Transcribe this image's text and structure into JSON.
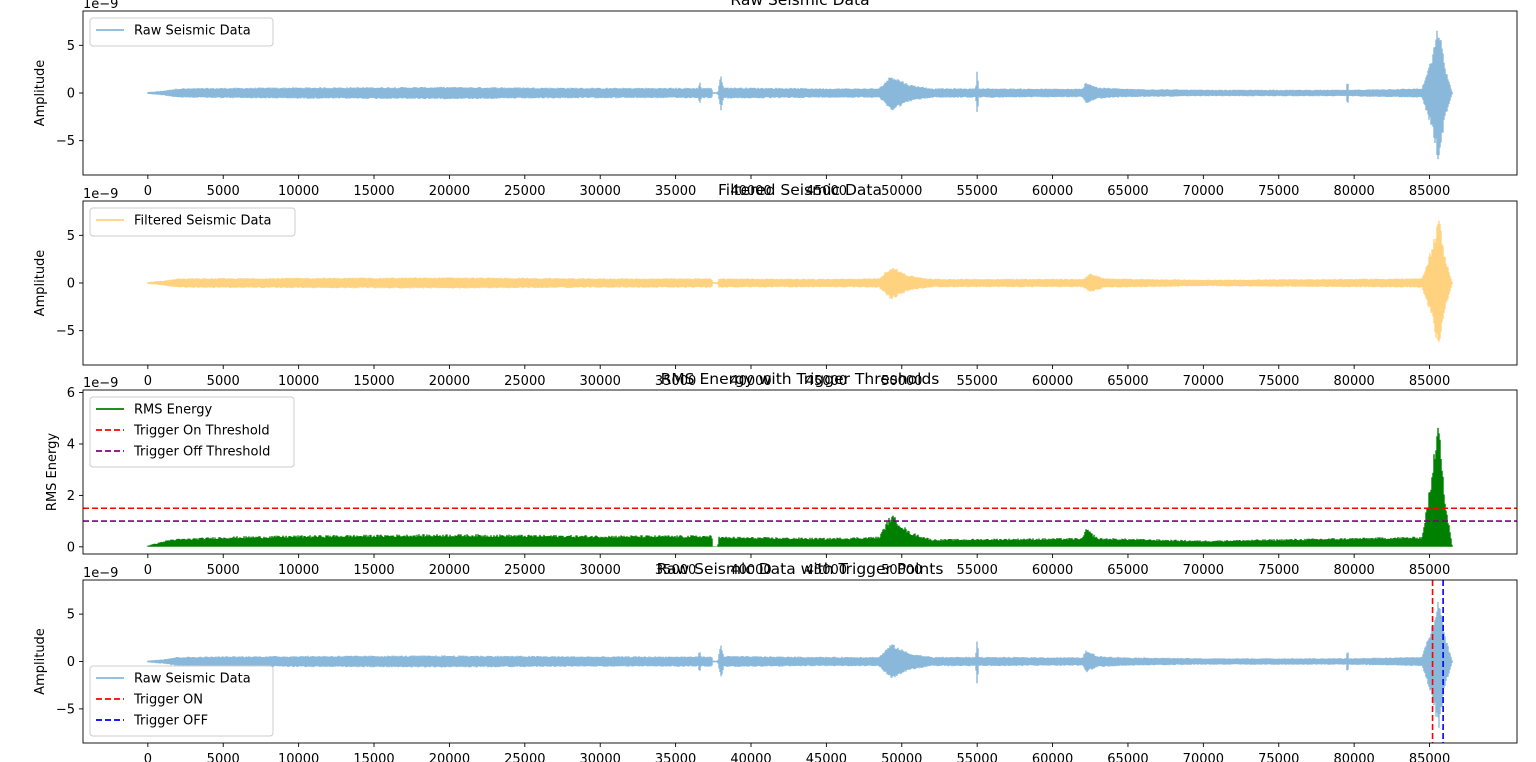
{
  "chart_data": [
    {
      "type": "line",
      "title": "Raw Seismic Data",
      "xlabel": "",
      "ylabel": "Amplitude",
      "offset_label": "1e−9",
      "xlim": [
        -4300,
        90800
      ],
      "ylim": [
        -8.6,
        8.6
      ],
      "xticks": [
        0,
        5000,
        10000,
        15000,
        20000,
        25000,
        30000,
        35000,
        40000,
        45000,
        50000,
        55000,
        60000,
        65000,
        70000,
        75000,
        80000,
        85000
      ],
      "yticks": [
        -5,
        0,
        5
      ],
      "legend_position": "upper left",
      "series": [
        {
          "name": "Raw Seismic Data",
          "color": "#8ab8da",
          "style": "solid",
          "envelope": [
            [
              0,
              0.1
            ],
            [
              1000,
              0.25
            ],
            [
              2000,
              0.5
            ],
            [
              5000,
              0.55
            ],
            [
              10000,
              0.6
            ],
            [
              20000,
              0.65
            ],
            [
              30000,
              0.55
            ],
            [
              36500,
              0.55
            ],
            [
              36600,
              1.3
            ],
            [
              36700,
              0.55
            ],
            [
              37400,
              0.55
            ],
            [
              37450,
              0.1
            ],
            [
              37800,
              0.1
            ],
            [
              37850,
              0.6
            ],
            [
              38000,
              1.9
            ],
            [
              38200,
              0.6
            ],
            [
              45000,
              0.5
            ],
            [
              48500,
              0.5
            ],
            [
              49300,
              1.9
            ],
            [
              50500,
              0.9
            ],
            [
              52000,
              0.5
            ],
            [
              54900,
              0.5
            ],
            [
              55000,
              2.7
            ],
            [
              55100,
              0.5
            ],
            [
              62000,
              0.45
            ],
            [
              62200,
              1.2
            ],
            [
              63000,
              0.6
            ],
            [
              65000,
              0.45
            ],
            [
              70000,
              0.35
            ],
            [
              79500,
              0.35
            ],
            [
              79550,
              1.6
            ],
            [
              79650,
              0.35
            ],
            [
              84500,
              0.5
            ],
            [
              85200,
              4.0
            ],
            [
              85600,
              7.5
            ],
            [
              86000,
              3.0
            ],
            [
              86500,
              0.1
            ]
          ]
        }
      ]
    },
    {
      "type": "line",
      "title": "Filtered Seismic Data",
      "xlabel": "",
      "ylabel": "Amplitude",
      "offset_label": "1e−9",
      "xlim": [
        -4300,
        90800
      ],
      "ylim": [
        -8.6,
        8.6
      ],
      "xticks": [
        0,
        5000,
        10000,
        15000,
        20000,
        25000,
        30000,
        35000,
        40000,
        45000,
        50000,
        55000,
        60000,
        65000,
        70000,
        75000,
        80000,
        85000
      ],
      "yticks": [
        -5,
        0,
        5
      ],
      "legend_position": "upper left",
      "series": [
        {
          "name": "Filtered Seismic Data",
          "color": "#ffd280",
          "style": "solid",
          "envelope": [
            [
              0,
              0.1
            ],
            [
              1000,
              0.25
            ],
            [
              2000,
              0.5
            ],
            [
              10000,
              0.55
            ],
            [
              20000,
              0.6
            ],
            [
              30000,
              0.5
            ],
            [
              37400,
              0.5
            ],
            [
              37450,
              0.1
            ],
            [
              37800,
              0.1
            ],
            [
              37850,
              0.5
            ],
            [
              45000,
              0.45
            ],
            [
              48500,
              0.5
            ],
            [
              49300,
              1.8
            ],
            [
              50500,
              0.8
            ],
            [
              52000,
              0.45
            ],
            [
              62000,
              0.45
            ],
            [
              62500,
              1.0
            ],
            [
              63500,
              0.5
            ],
            [
              70000,
              0.35
            ],
            [
              84500,
              0.5
            ],
            [
              85200,
              4.0
            ],
            [
              85600,
              7.3
            ],
            [
              86000,
              3.0
            ],
            [
              86500,
              0.1
            ]
          ]
        }
      ]
    },
    {
      "type": "line",
      "title": "RMS Energy with Trigger Thresholds",
      "xlabel": "",
      "ylabel": "RMS Energy",
      "offset_label": "1e−9",
      "xlim": [
        -4300,
        90800
      ],
      "ylim": [
        -0.28,
        6.1
      ],
      "xticks": [
        0,
        5000,
        10000,
        15000,
        20000,
        25000,
        30000,
        35000,
        40000,
        45000,
        50000,
        55000,
        60000,
        65000,
        70000,
        75000,
        80000,
        85000
      ],
      "yticks": [
        0,
        2,
        4,
        6
      ],
      "legend_position": "upper left",
      "series": [
        {
          "name": "RMS Energy",
          "color": "#008000",
          "style": "solid",
          "envelope": [
            [
              0,
              0.05
            ],
            [
              1500,
              0.3
            ],
            [
              5000,
              0.4
            ],
            [
              10000,
              0.45
            ],
            [
              20000,
              0.5
            ],
            [
              30000,
              0.45
            ],
            [
              37400,
              0.45
            ],
            [
              37450,
              0.02
            ],
            [
              37800,
              0.02
            ],
            [
              37850,
              0.4
            ],
            [
              45000,
              0.35
            ],
            [
              48500,
              0.4
            ],
            [
              49300,
              1.3
            ],
            [
              50500,
              0.6
            ],
            [
              52000,
              0.3
            ],
            [
              62000,
              0.35
            ],
            [
              62200,
              0.75
            ],
            [
              63000,
              0.35
            ],
            [
              70000,
              0.25
            ],
            [
              84500,
              0.4
            ],
            [
              85200,
              3.0
            ],
            [
              85600,
              5.8
            ],
            [
              86000,
              2.0
            ],
            [
              86500,
              0.05
            ]
          ]
        },
        {
          "name": "Trigger On Threshold",
          "color": "#ff0000",
          "style": "dashed",
          "y": 1.5
        },
        {
          "name": "Trigger Off Threshold",
          "color": "#800080",
          "style": "dashed",
          "y": 1.0
        }
      ]
    },
    {
      "type": "line",
      "title": "Raw Seismic Data with Trigger Points",
      "xlabel": "",
      "ylabel": "Amplitude",
      "offset_label": "1e−9",
      "xlim": [
        -4300,
        90800
      ],
      "ylim": [
        -8.6,
        8.6
      ],
      "xticks": [
        0,
        5000,
        10000,
        15000,
        20000,
        25000,
        30000,
        35000,
        40000,
        45000,
        50000,
        55000,
        60000,
        65000,
        70000,
        75000,
        80000,
        85000
      ],
      "yticks": [
        -5,
        0,
        5
      ],
      "legend_position": "lower left",
      "series": [
        {
          "name": "Raw Seismic Data",
          "color": "#8ab8da",
          "style": "solid",
          "envelope": [
            [
              0,
              0.1
            ],
            [
              1000,
              0.25
            ],
            [
              2000,
              0.5
            ],
            [
              5000,
              0.55
            ],
            [
              10000,
              0.6
            ],
            [
              20000,
              0.65
            ],
            [
              30000,
              0.55
            ],
            [
              36500,
              0.55
            ],
            [
              36600,
              1.3
            ],
            [
              36700,
              0.55
            ],
            [
              37400,
              0.55
            ],
            [
              37450,
              0.1
            ],
            [
              37800,
              0.1
            ],
            [
              37850,
              0.6
            ],
            [
              38000,
              1.9
            ],
            [
              38200,
              0.6
            ],
            [
              45000,
              0.5
            ],
            [
              48500,
              0.5
            ],
            [
              49300,
              1.9
            ],
            [
              50500,
              0.9
            ],
            [
              52000,
              0.5
            ],
            [
              54900,
              0.5
            ],
            [
              55000,
              2.7
            ],
            [
              55100,
              0.5
            ],
            [
              62000,
              0.45
            ],
            [
              62200,
              1.2
            ],
            [
              63000,
              0.6
            ],
            [
              65000,
              0.45
            ],
            [
              70000,
              0.35
            ],
            [
              79500,
              0.35
            ],
            [
              79550,
              1.6
            ],
            [
              79650,
              0.35
            ],
            [
              84500,
              0.5
            ],
            [
              85200,
              4.0
            ],
            [
              85600,
              7.5
            ],
            [
              86000,
              3.0
            ],
            [
              86500,
              0.1
            ]
          ]
        },
        {
          "name": "Trigger ON",
          "color": "#ff0000",
          "style": "dashed",
          "x": 85200
        },
        {
          "name": "Trigger OFF",
          "color": "#0000ff",
          "style": "dashed",
          "x": 85900
        }
      ]
    }
  ]
}
